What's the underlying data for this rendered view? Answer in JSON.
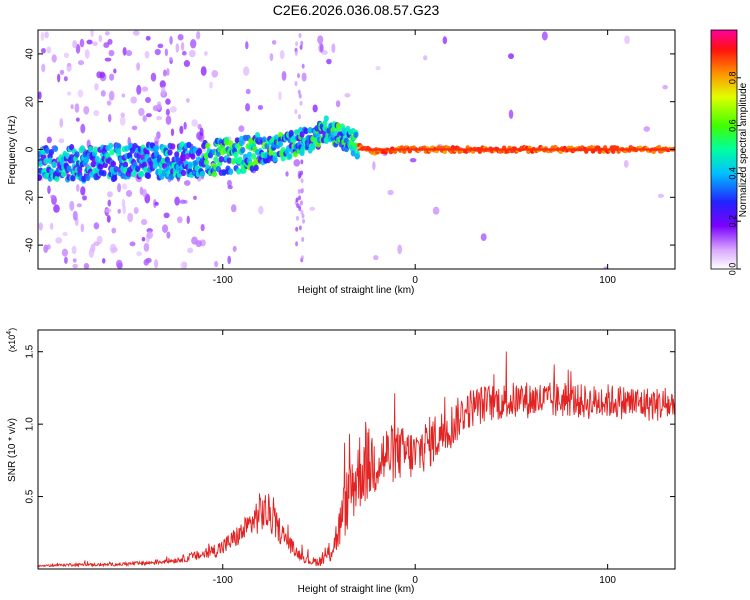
{
  "title": "C2E6.2026.036.08.57.G23",
  "chart_data": [
    {
      "type": "heatmap",
      "xlabel": "Height of straight line (km)",
      "ylabel": "Frequency (Hz)",
      "xlim": [
        -196,
        135
      ],
      "ylim": [
        -50,
        50
      ],
      "xticks": [
        -100,
        0,
        100
      ],
      "yticks": [
        -40,
        -20,
        0,
        20,
        40
      ],
      "ridge": {
        "x": [
          -196,
          -170,
          -150,
          -130,
          -110,
          -90,
          -75,
          -60,
          -50,
          -45,
          -40,
          -35,
          -30,
          -25,
          -20,
          -15,
          -10,
          0,
          50,
          100,
          135
        ],
        "frequency": [
          -6,
          -6,
          -5,
          -5,
          -4,
          -2,
          0,
          3,
          6,
          9,
          6,
          4,
          2,
          0,
          -1,
          -1,
          0,
          0,
          0,
          0,
          0
        ]
      },
      "colorbar": {
        "label": "Normalized spectral amplitude",
        "range": [
          0.0,
          1.0
        ],
        "ticks": [
          0.0,
          0.2,
          0.4,
          0.6,
          0.8
        ],
        "tick_labels": [
          "0.0",
          "0.2",
          "0.4",
          "0.6",
          "0.8"
        ]
      }
    },
    {
      "type": "line",
      "xlabel": "Height of straight line (km)",
      "ylabel": "SNR (10 * v/v)",
      "y_multiplier_label": "(x10",
      "y_multiplier_exp": "4",
      "xlim": [
        -196,
        135
      ],
      "ylim": [
        0,
        1.65
      ],
      "xticks": [
        -100,
        0,
        100
      ],
      "yticks": [
        0.5,
        1.0,
        1.5
      ],
      "ytick_labels": [
        "0.5",
        "1.0",
        "1.5"
      ],
      "color": "#e32222",
      "series": [
        {
          "x": [
            -196,
            -180,
            -160,
            -140,
            -125,
            -110,
            -100,
            -90,
            -85,
            -80,
            -76,
            -72,
            -68,
            -62,
            -56,
            -52,
            -48,
            -44,
            -40,
            -36,
            -32,
            -28,
            -24,
            -20,
            -15,
            -10,
            -5,
            0,
            5,
            10,
            15,
            20,
            25,
            30,
            40,
            50,
            60,
            70,
            80,
            90,
            100,
            110,
            120,
            135
          ],
          "y": [
            0.02,
            0.03,
            0.03,
            0.04,
            0.06,
            0.1,
            0.15,
            0.25,
            0.32,
            0.4,
            0.38,
            0.3,
            0.22,
            0.12,
            0.06,
            0.05,
            0.06,
            0.12,
            0.25,
            0.45,
            0.6,
            0.7,
            0.72,
            0.75,
            0.78,
            0.8,
            0.8,
            0.78,
            0.85,
            0.9,
            0.95,
            1.0,
            1.08,
            1.12,
            1.15,
            1.16,
            1.17,
            1.16,
            1.17,
            1.15,
            1.16,
            1.15,
            1.14,
            1.13
          ],
          "noise": [
            0.005,
            0.01,
            0.01,
            0.015,
            0.02,
            0.04,
            0.06,
            0.08,
            0.1,
            0.15,
            0.14,
            0.1,
            0.08,
            0.04,
            0.03,
            0.03,
            0.04,
            0.08,
            0.14,
            0.22,
            0.28,
            0.28,
            0.26,
            0.24,
            0.22,
            0.2,
            0.18,
            0.18,
            0.18,
            0.18,
            0.16,
            0.16,
            0.14,
            0.14,
            0.13,
            0.13,
            0.13,
            0.13,
            0.12,
            0.12,
            0.12,
            0.12,
            0.12,
            0.12
          ]
        }
      ]
    }
  ]
}
